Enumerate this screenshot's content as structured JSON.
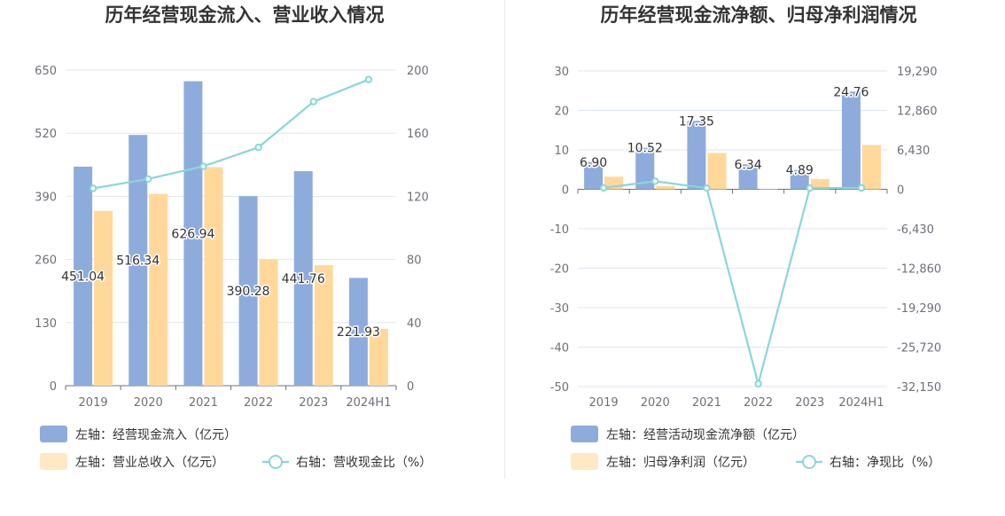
{
  "colors": {
    "blue": "#8eacdb",
    "orange": "#ffd89a",
    "orange_legend": "#ffe9c4",
    "teal": "#89d6d9",
    "grid": "#e0e6f1",
    "axis": "#6e7079"
  },
  "charts": [
    {
      "title": "历年经营现金流入、营业收入情况",
      "legend": [
        "左轴：经营现金流入（亿元）",
        "左轴：营业总收入（亿元）",
        "右轴：营收现金比（%）"
      ],
      "left_ticks": [
        "0",
        "130",
        "260",
        "390",
        "520",
        "650"
      ],
      "right_ticks": [
        "0",
        "40",
        "80",
        "120",
        "160",
        "200"
      ],
      "categories": [
        "2019",
        "2020",
        "2021",
        "2022",
        "2023",
        "2024H1"
      ],
      "bar1_labels": [
        "451.04",
        "516.34",
        "626.94",
        "390.28",
        "441.76",
        "221.93"
      ]
    },
    {
      "title": "历年经营现金流净额、归母净利润情况",
      "legend": [
        "左轴：经营活动现金流净额（亿元）",
        "左轴：归母净利润（亿元）",
        "右轴：净现比（%）"
      ],
      "left_ticks": [
        "-50",
        "-40",
        "-30",
        "-20",
        "-10",
        "0",
        "10",
        "20",
        "30"
      ],
      "right_ticks": [
        "-32,150",
        "-25,720",
        "-19,290",
        "-12,860",
        "-6,430",
        "0",
        "6,430",
        "12,860",
        "19,290"
      ],
      "categories": [
        "2019",
        "2020",
        "2021",
        "2022",
        "2023",
        "2024H1"
      ],
      "bar1_labels": [
        "6.90",
        "10.52",
        "17.35",
        "6.34",
        "4.89",
        "24.76"
      ]
    }
  ],
  "chart_data": [
    {
      "type": "bar",
      "title": "历年经营现金流入、营业收入情况",
      "categories": [
        "2019",
        "2020",
        "2021",
        "2022",
        "2023",
        "2024H1"
      ],
      "ylim_left": [
        0,
        650
      ],
      "ylim_right": [
        0,
        200
      ],
      "series": [
        {
          "name": "左轴：经营现金流入（亿元）",
          "axis": "left",
          "kind": "bar",
          "values": [
            451.04,
            516.34,
            626.94,
            390.28,
            441.76,
            221.93
          ]
        },
        {
          "name": "左轴：营业总收入（亿元）",
          "axis": "left",
          "kind": "bar",
          "values": [
            360,
            395,
            450,
            260,
            248,
            117
          ]
        },
        {
          "name": "右轴：营收现金比（%）",
          "axis": "right",
          "kind": "line",
          "values": [
            125,
            131,
            139,
            151,
            180,
            194
          ]
        }
      ]
    },
    {
      "type": "bar",
      "title": "历年经营现金流净额、归母净利润情况",
      "categories": [
        "2019",
        "2020",
        "2021",
        "2022",
        "2023",
        "2024H1"
      ],
      "ylim_left": [
        -50,
        30
      ],
      "ylim_right": [
        -32150,
        19290
      ],
      "series": [
        {
          "name": "左轴：经营活动现金流净额（亿元）",
          "axis": "left",
          "kind": "bar",
          "values": [
            6.9,
            10.52,
            17.35,
            6.34,
            4.89,
            24.76
          ]
        },
        {
          "name": "左轴：归母净利润（亿元）",
          "axis": "left",
          "kind": "bar",
          "values": [
            3.2,
            0.8,
            9.2,
            -0.02,
            2.6,
            11.2
          ]
        },
        {
          "name": "右轴：净现比（%）",
          "axis": "right",
          "kind": "line",
          "values": [
            216,
            1315,
            189,
            -31700,
            188,
            221
          ]
        }
      ]
    }
  ]
}
